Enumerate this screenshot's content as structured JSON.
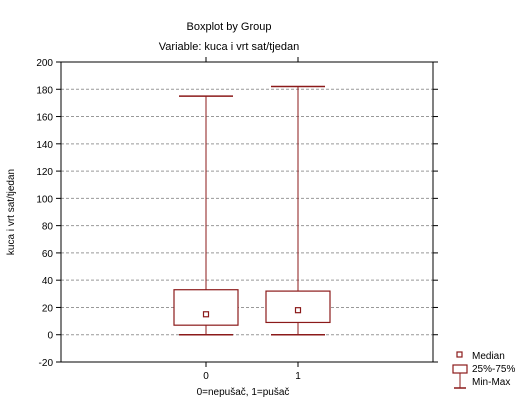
{
  "chart_data": {
    "type": "boxplot",
    "title": "Boxplot by Group",
    "subtitle": "Variable: kuca i vrt sat/tjedan",
    "xlabel": "0=nepušač, 1=pušač",
    "ylabel": "kuca i vrt sat/tjedan",
    "ylim": [
      -20,
      200
    ],
    "yticks": [
      -20,
      0,
      20,
      40,
      60,
      80,
      100,
      120,
      140,
      160,
      180,
      200
    ],
    "categories": [
      "0",
      "1"
    ],
    "series": [
      {
        "category": "0",
        "min": 0,
        "q1": 7,
        "median": 15,
        "q3": 33,
        "max": 175
      },
      {
        "category": "1",
        "min": 0,
        "q1": 9,
        "median": 18,
        "q3": 32,
        "max": 182
      }
    ],
    "grid": true,
    "legend": {
      "position": "bottom-right",
      "items": [
        "Median",
        "25%-75%",
        "Min-Max"
      ]
    },
    "colors": {
      "box": "#8b1a1a",
      "grid": "#999999",
      "axis": "#000000"
    }
  }
}
